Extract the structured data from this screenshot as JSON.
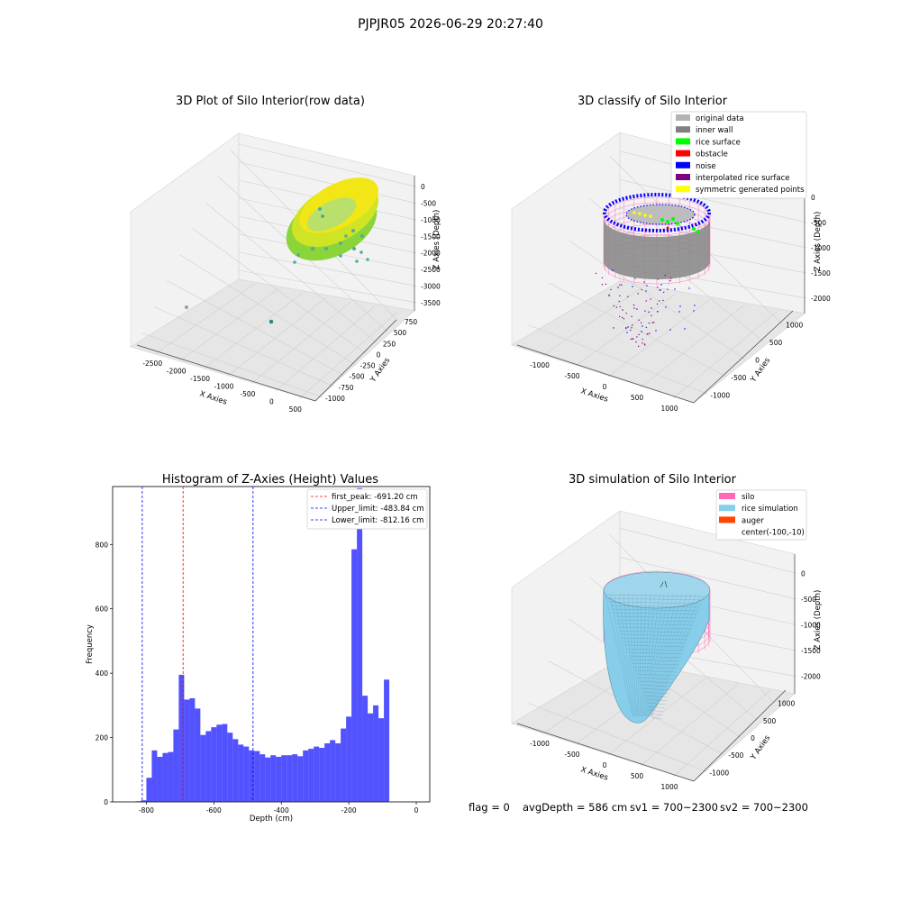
{
  "figure": {
    "suptitle": "PJPJR05 2026-06-29 20:27:40",
    "footer": {
      "flag": "flag = 0",
      "avg_depth": "avgDepth = 586 cm",
      "sv1": "sv1 = 700~2300",
      "sv2": "sv2 = 700~2300"
    }
  },
  "panels": {
    "raw": {
      "title": "3D Plot of Silo Interior(row data)",
      "xlabel": "X Axies",
      "ylabel": "Y Axies",
      "zlabel": "Z Axies (Depth)",
      "xticks": [
        "-2500",
        "-2000",
        "-1500",
        "-1000",
        "-500",
        "0",
        "500"
      ],
      "yticks": [
        "-1000",
        "-750",
        "-500",
        "-250",
        "0",
        "250",
        "500",
        "750"
      ],
      "zticks": [
        "0",
        "-500",
        "-1000",
        "-1500",
        "-2000",
        "-2500",
        "-3000",
        "-3500"
      ],
      "colors": {
        "ring_low": "#7ed23a",
        "ring_high": "#f2e616",
        "scatter": "#4fae9a",
        "outlier": "#2a8a8a"
      }
    },
    "classify": {
      "title": "3D classify of Silo Interior",
      "xlabel": "X Axies",
      "ylabel": "Y Axies",
      "zlabel": "Z Axies (Depth)",
      "xticks": [
        "-1000",
        "-500",
        "0",
        "500",
        "1000"
      ],
      "yticks": [
        "-1000",
        "-500",
        "0",
        "500",
        "1000"
      ],
      "zticks": [
        "0",
        "-500",
        "-1000",
        "-1500",
        "-2000"
      ],
      "legend": [
        {
          "label": "original data",
          "color": "#b3b3b3"
        },
        {
          "label": "inner wall",
          "color": "#808080"
        },
        {
          "label": "rice surface",
          "color": "#00ff00"
        },
        {
          "label": "obstacle",
          "color": "#ff0000"
        },
        {
          "label": "noise",
          "color": "#0000ff"
        },
        {
          "label": "interpolated rice surface",
          "color": "#800080"
        },
        {
          "label": "symmetric generated points",
          "color": "#ffff00"
        }
      ],
      "colors": {
        "silo_mesh": "#ff69b4"
      }
    },
    "histogram": {
      "title": "Histogram of Z-Axies (Height) Values",
      "xlabel": "Depth (cm)",
      "ylabel": "Frequency",
      "xticks": [
        "-800",
        "-600",
        "-400",
        "-200",
        "0"
      ],
      "yticks": [
        "0",
        "200",
        "400",
        "600",
        "800"
      ],
      "legend": [
        {
          "label": "first_peak: -691.20 cm",
          "color": "#ff0000"
        },
        {
          "label": "Upper_limit: -483.84 cm",
          "color": "#0000ff"
        },
        {
          "label": "Lower_limit: -812.16 cm",
          "color": "#0000ff"
        }
      ]
    },
    "simulation": {
      "title": "3D simulation of Silo Interior",
      "xlabel": "X Axies",
      "ylabel": "Y Axies",
      "zlabel": "Z Axies (Depth)",
      "xticks": [
        "-1000",
        "-500",
        "0",
        "500",
        "1000"
      ],
      "yticks": [
        "-1000",
        "-500",
        "0",
        "500",
        "1000"
      ],
      "zticks": [
        "0",
        "-500",
        "-1000",
        "-1500",
        "-2000"
      ],
      "legend": [
        {
          "label": "silo",
          "color": "#ff69b4"
        },
        {
          "label": "rice simulation",
          "color": "#87ceeb"
        },
        {
          "label": "auger",
          "color": "#ff4500"
        },
        {
          "label": "center(-100,-10)",
          "color": ""
        }
      ]
    }
  },
  "chart_data": [
    {
      "type": "scatter",
      "title": "3D Plot of Silo Interior(row data)",
      "xlabel": "X Axies",
      "ylabel": "Y Axies",
      "zlabel": "Z Axies (Depth)",
      "xlim": [
        -2800,
        700
      ],
      "ylim": [
        -1000,
        800
      ],
      "zlim": [
        -3700,
        100
      ],
      "description_points": [
        {
          "x": 0,
          "y": 0,
          "z": -800
        }
      ]
    },
    {
      "type": "scatter",
      "title": "3D classify of Silo Interior",
      "xlabel": "X Axies",
      "ylabel": "Y Axies",
      "zlabel": "Z Axies (Depth)",
      "xlim": [
        -1200,
        1100
      ],
      "ylim": [
        -1100,
        1100
      ],
      "zlim": [
        -2200,
        100
      ]
    },
    {
      "type": "bar",
      "title": "Histogram of Z-Axies (Height) Values",
      "xlabel": "Depth (cm)",
      "ylabel": "Frequency",
      "xlim": [
        -900,
        40
      ],
      "ylim": [
        0,
        980
      ],
      "bin_width": 16.0,
      "bins_start": [
        -832,
        -816,
        -800,
        -784,
        -768,
        -752,
        -736,
        -720,
        -704,
        -688,
        -672,
        -656,
        -640,
        -624,
        -608,
        -592,
        -576,
        -560,
        -544,
        -528,
        -512,
        -496,
        -480,
        -464,
        -448,
        -432,
        -416,
        -400,
        -384,
        -368,
        -352,
        -336,
        -320,
        -304,
        -288,
        -272,
        -256,
        -240,
        -224,
        -208,
        -192,
        -176,
        -160,
        -144,
        -128,
        -112,
        -96,
        -80,
        -64,
        -48,
        -32,
        -16
      ],
      "values": [
        2,
        5,
        75,
        160,
        140,
        152,
        155,
        225,
        395,
        318,
        322,
        290,
        208,
        220,
        232,
        240,
        242,
        215,
        195,
        178,
        172,
        160,
        158,
        148,
        138,
        145,
        140,
        145,
        145,
        148,
        142,
        160,
        165,
        172,
        168,
        182,
        192,
        182,
        228,
        265,
        785,
        975,
        330,
        275,
        300,
        260,
        380,
        0,
        0,
        0,
        0,
        0
      ],
      "vlines": [
        {
          "x": -691.2,
          "label": "first_peak: -691.20 cm",
          "color": "#ff0000"
        },
        {
          "x": -483.84,
          "label": "Upper_limit: -483.84 cm",
          "color": "#0000ff"
        },
        {
          "x": -812.16,
          "label": "Lower_limit: -812.16 cm",
          "color": "#0000ff"
        }
      ]
    },
    {
      "type": "area",
      "title": "3D simulation of Silo Interior",
      "xlabel": "X Axies",
      "ylabel": "Y Axies",
      "zlabel": "Z Axies (Depth)",
      "xlim": [
        -1200,
        1100
      ],
      "ylim": [
        -1100,
        1100
      ],
      "zlim": [
        -2200,
        100
      ]
    }
  ]
}
